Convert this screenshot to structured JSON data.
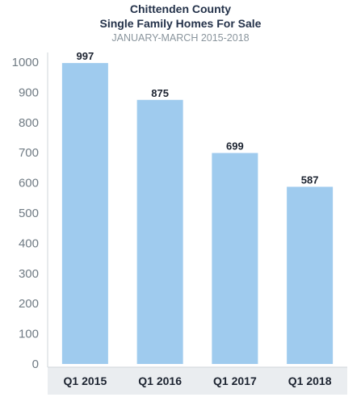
{
  "colors": {
    "bar": "#9fcbee",
    "category_band": "#eaedf0",
    "axis": "#cfd5da",
    "title": "#24324a",
    "subtitle": "#8a959d"
  },
  "chart_data": {
    "type": "bar",
    "title": "Chittenden County",
    "subtitle_line": "Single Family Homes For Sale",
    "period": "JANUARY-MARCH 2015-2018",
    "categories": [
      "Q1 2015",
      "Q1 2016",
      "Q1 2017",
      "Q1 2018"
    ],
    "values": [
      997,
      875,
      699,
      587
    ],
    "data_labels": [
      "997",
      "875",
      "699",
      "587"
    ],
    "ylim": [
      0,
      1000
    ],
    "yticks": [
      0,
      100,
      200,
      300,
      400,
      500,
      600,
      700,
      800,
      900,
      1000
    ],
    "ytick_labels": [
      "0",
      "100",
      "200",
      "300",
      "400",
      "500",
      "600",
      "700",
      "800",
      "900",
      "1000"
    ],
    "grid": false,
    "legend": "none"
  }
}
